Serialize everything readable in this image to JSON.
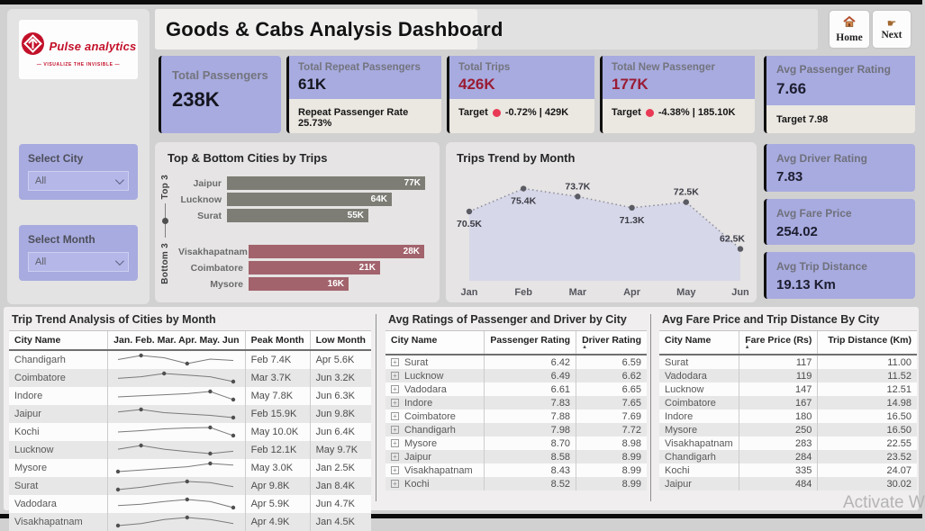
{
  "brand": {
    "name": "Pulse analytics",
    "tagline": "— VISUALIZE THE INVISIBLE —"
  },
  "header": {
    "title": "Goods & Cabs Analysis Dashboard"
  },
  "nav": [
    {
      "label": "Home"
    },
    {
      "label": "Next"
    }
  ],
  "filters": [
    {
      "label": "Select City",
      "value": "All"
    },
    {
      "label": "Select Month",
      "value": "All"
    }
  ],
  "kpis": [
    {
      "title": "Total Passengers",
      "value": "238K"
    },
    {
      "title": "Total Repeat Passengers",
      "value": "61K",
      "sub_text": "Repeat Passenger Rate 25.73%"
    },
    {
      "title": "Total Trips",
      "value": "426K",
      "sub_prefix": "Target",
      "sub_text": "-0.72% | 429K"
    },
    {
      "title": "Total New Passenger",
      "value": "177K",
      "sub_prefix": "Target",
      "sub_text": "-4.38% | 185.10K"
    }
  ],
  "side_kpis": [
    {
      "title": "Avg Passenger Rating",
      "value": "7.66",
      "sub_text": "Target 7.98"
    },
    {
      "title": "Avg Driver Rating",
      "value": "7.83"
    },
    {
      "title": "Avg Fare Price",
      "value": "254.02"
    },
    {
      "title": "Avg Trip Distance",
      "value": "19.13 Km"
    }
  ],
  "colors": {
    "accent_lavender": "#a7abdf",
    "card_sub_bg": "#ebe7e1",
    "value_red": "#9a1b33",
    "bar_top": "#7d7d75",
    "bar_bottom": "#a2636c",
    "brand_red": "#c3112a",
    "target_dot": "#e83a55",
    "area_fill": "#d5d6e8"
  },
  "chart_data": [
    {
      "type": "bar",
      "title": "Top & Bottom Cities by Trips",
      "orientation": "horizontal",
      "groups": [
        {
          "name": "Top 3",
          "color": "#7d7d75",
          "categories": [
            "Jaipur",
            "Lucknow",
            "Surat"
          ],
          "values": [
            77,
            64,
            55
          ],
          "labels": [
            "77K",
            "64K",
            "55K"
          ]
        },
        {
          "name": "Bottom 3",
          "color": "#a2636c",
          "categories": [
            "Visakhapatnam",
            "Coimbatore",
            "Mysore"
          ],
          "values": [
            28,
            21,
            16
          ],
          "labels": [
            "28K",
            "21K",
            "16K"
          ]
        }
      ]
    },
    {
      "type": "area",
      "title": "Trips Trend by Month",
      "x": [
        "Jan",
        "Feb",
        "Mar",
        "Apr",
        "May",
        "Jun"
      ],
      "values": [
        70.5,
        75.4,
        73.7,
        71.3,
        72.5,
        62.5
      ],
      "labels": [
        "70.5K",
        "75.4K",
        "73.7K",
        "71.3K",
        "72.5K",
        "62.5K"
      ],
      "label_above": [
        false,
        false,
        true,
        false,
        true,
        true
      ],
      "ylim": [
        58,
        78
      ],
      "line_style": "dotted",
      "grid": false
    }
  ],
  "tables": [
    {
      "title": "Trip Trend Analysis of Cities by Month",
      "columns": [
        "City Name",
        "Jan. Feb. Mar. Apr. May. Jun",
        "Peak Month",
        "Low Month"
      ],
      "rows": [
        {
          "city": "Chandigarh",
          "spark": [
            6.5,
            7.4,
            6.9,
            5.6,
            6.6,
            6.3
          ],
          "peak_idx": 1,
          "low_idx": 3,
          "peak": "Feb 7.4K",
          "low": "Apr 5.6K"
        },
        {
          "city": "Coimbatore",
          "spark": [
            3.4,
            3.5,
            3.7,
            3.6,
            3.5,
            3.2
          ],
          "peak_idx": 2,
          "low_idx": 5,
          "peak": "Mar 3.7K",
          "low": "Jun 3.2K"
        },
        {
          "city": "Indore",
          "spark": [
            6.8,
            7.0,
            7.2,
            7.4,
            7.8,
            6.3
          ],
          "peak_idx": 4,
          "low_idx": 5,
          "peak": "May 7.8K",
          "low": "Jun 6.3K"
        },
        {
          "city": "Jaipur",
          "spark": [
            14.0,
            15.9,
            13.5,
            12.5,
            11.5,
            9.8
          ],
          "peak_idx": 1,
          "low_idx": 5,
          "peak": "Feb 15.9K",
          "low": "Jun 9.8K"
        },
        {
          "city": "Kochi",
          "spark": [
            8.0,
            8.6,
            9.4,
            9.8,
            10.0,
            6.4
          ],
          "peak_idx": 4,
          "low_idx": 5,
          "peak": "May 10.0K",
          "low": "Jun 6.4K"
        },
        {
          "city": "Lucknow",
          "spark": [
            11.0,
            12.1,
            11.0,
            10.3,
            9.7,
            10.4
          ],
          "peak_idx": 1,
          "low_idx": 4,
          "peak": "Feb 12.1K",
          "low": "May 9.7K"
        },
        {
          "city": "Mysore",
          "spark": [
            2.5,
            2.6,
            2.7,
            2.8,
            3.0,
            2.9
          ],
          "peak_idx": 4,
          "low_idx": 0,
          "peak": "May 3.0K",
          "low": "Jan 2.5K"
        },
        {
          "city": "Surat",
          "spark": [
            8.4,
            8.8,
            9.4,
            9.8,
            9.6,
            8.9
          ],
          "peak_idx": 3,
          "low_idx": 0,
          "peak": "Apr 9.8K",
          "low": "Jan 8.4K"
        },
        {
          "city": "Vadodara",
          "spark": [
            5.0,
            5.2,
            5.6,
            5.9,
            5.6,
            4.7
          ],
          "peak_idx": 3,
          "low_idx": 5,
          "peak": "Apr 5.9K",
          "low": "Jun 4.7K"
        },
        {
          "city": "Visakhapatnam",
          "spark": [
            4.5,
            4.6,
            4.8,
            4.9,
            4.8,
            4.6
          ],
          "peak_idx": 3,
          "low_idx": 0,
          "peak": "Apr 4.9K",
          "low": "Jan 4.5K"
        }
      ]
    },
    {
      "title": "Avg Ratings of Passenger and Driver by City",
      "columns": [
        "City Name",
        "Passenger Rating",
        "Driver Rating"
      ],
      "sort_column": 2,
      "rows": [
        [
          "Surat",
          "6.42",
          "6.59"
        ],
        [
          "Lucknow",
          "6.49",
          "6.62"
        ],
        [
          "Vadodara",
          "6.61",
          "6.65"
        ],
        [
          "Indore",
          "7.83",
          "7.65"
        ],
        [
          "Coimbatore",
          "7.88",
          "7.69"
        ],
        [
          "Chandigarh",
          "7.98",
          "7.72"
        ],
        [
          "Mysore",
          "8.70",
          "8.98"
        ],
        [
          "Jaipur",
          "8.58",
          "8.99"
        ],
        [
          "Visakhapatnam",
          "8.43",
          "8.99"
        ],
        [
          "Kochi",
          "8.52",
          "8.99"
        ]
      ]
    },
    {
      "title": "Avg Fare Price and Trip Distance By City",
      "columns": [
        "City Name",
        "Fare Price (Rs)",
        "Trip Distance (Km)"
      ],
      "sort_column": 1,
      "rows": [
        [
          "Surat",
          "117",
          "11.00"
        ],
        [
          "Vadodara",
          "119",
          "11.52"
        ],
        [
          "Lucknow",
          "147",
          "12.51"
        ],
        [
          "Coimbatore",
          "167",
          "14.98"
        ],
        [
          "Indore",
          "180",
          "16.50"
        ],
        [
          "Mysore",
          "250",
          "16.50"
        ],
        [
          "Visakhapatnam",
          "283",
          "22.55"
        ],
        [
          "Chandigarh",
          "284",
          "23.52"
        ],
        [
          "Kochi",
          "335",
          "24.07"
        ],
        [
          "Jaipur",
          "484",
          "30.02"
        ]
      ]
    }
  ],
  "watermark": "Activate W"
}
